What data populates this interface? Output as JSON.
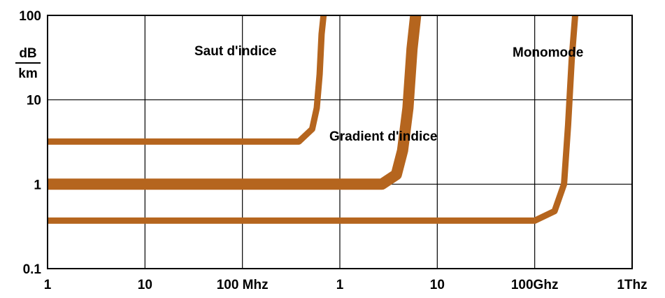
{
  "chart_data": {
    "type": "line",
    "title": "",
    "xlabel": "",
    "ylabel_num": "dB",
    "ylabel_den": "km",
    "x_scale": "log",
    "y_scale": "log",
    "xlim_hz": [
      1000000,
      1000000000000
    ],
    "ylim": [
      0.1,
      100
    ],
    "grid": true,
    "x_ticks": [
      {
        "value_hz": 1000000,
        "label": "1"
      },
      {
        "value_hz": 10000000,
        "label": "10"
      },
      {
        "value_hz": 100000000,
        "label": "100 Mhz"
      },
      {
        "value_hz": 1000000000,
        "label": "1"
      },
      {
        "value_hz": 10000000000,
        "label": "10"
      },
      {
        "value_hz": 100000000000,
        "label": "100Ghz"
      },
      {
        "value_hz": 1000000000000,
        "label": "1Thz"
      }
    ],
    "y_ticks": [
      {
        "value": 100,
        "label": "100"
      },
      {
        "value": 10,
        "label": "10"
      },
      {
        "value": 1,
        "label": "1"
      },
      {
        "value": 0.1,
        "label": "0.1"
      }
    ],
    "series": [
      {
        "name": "Saut d'indice",
        "x_hz": [
          1000000,
          380000000,
          520000000,
          580000000,
          620000000,
          650000000,
          680000000
        ],
        "y": [
          3.2,
          3.2,
          4.5,
          8,
          20,
          60,
          100
        ]
      },
      {
        "name": "Gradient d'indice",
        "x_hz": [
          1000000,
          2700000000,
          3800000000,
          4400000000,
          5000000000,
          5500000000,
          6000000000
        ],
        "y": [
          1.0,
          1.0,
          1.3,
          2.5,
          8,
          40,
          100
        ]
      },
      {
        "name": "Monomode",
        "x_hz": [
          1000000,
          100000000000,
          160000000000,
          200000000000,
          220000000000,
          240000000000,
          260000000000
        ],
        "y": [
          0.37,
          0.37,
          0.48,
          1.0,
          5,
          30,
          100
        ]
      }
    ],
    "annotations": [
      {
        "text": "Saut d'indice",
        "series": 0
      },
      {
        "text": "Gradient d'indice",
        "series": 1
      },
      {
        "text": "Monomode",
        "series": 2
      }
    ],
    "line_color": "#b5651e"
  }
}
